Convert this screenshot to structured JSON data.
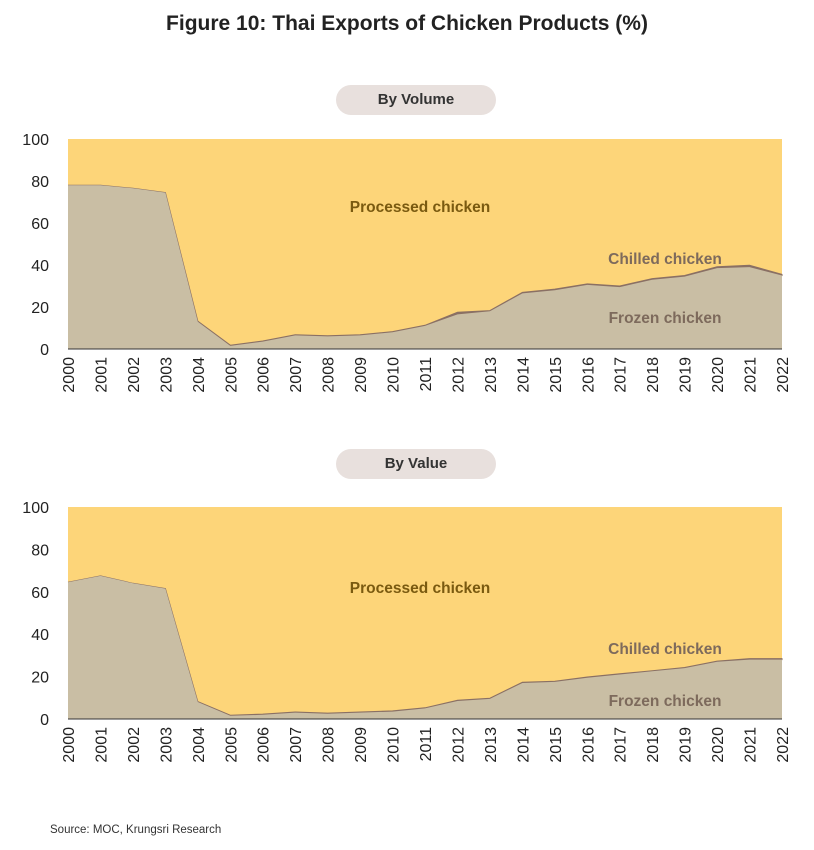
{
  "figure_title": "Figure 10: Thai Exports of Chicken Products (%)",
  "source": "Source: MOC, Krungsri Research",
  "colors": {
    "processed": "#fdd579",
    "chilled": "#8a7064",
    "frozen": "#c9bea4",
    "axis": "#333333",
    "label_processed": "#7a5a10",
    "label_other": "#7d6a5c"
  },
  "chart_data": [
    {
      "type": "area",
      "title": "By Volume",
      "stacked": true,
      "ylim": [
        0,
        100
      ],
      "yticks": [
        0,
        20,
        40,
        60,
        80,
        100
      ],
      "x": [
        "2000",
        "2001",
        "2002",
        "2003",
        "2004",
        "2005",
        "2006",
        "2007",
        "2008",
        "2009",
        "2010",
        "2011",
        "2012",
        "2013",
        "2014",
        "2015",
        "2016",
        "2017",
        "2018",
        "2019",
        "2020",
        "2021",
        "2022"
      ],
      "series": [
        {
          "name": "Frozen chicken",
          "values": [
            78,
            78,
            76.5,
            74.5,
            13,
            1.5,
            3.5,
            6.5,
            6,
            6.5,
            8,
            11,
            16.5,
            18,
            26.5,
            28,
            30.5,
            29.5,
            33,
            34.5,
            38.5,
            39,
            35
          ]
        },
        {
          "name": "Chilled chicken",
          "values": [
            0,
            0,
            0,
            0,
            0.3,
            0.3,
            0.3,
            0.3,
            0.3,
            0.3,
            0.3,
            0.3,
            1,
            0.3,
            0.5,
            0.5,
            0.5,
            0.5,
            0.5,
            0.5,
            0.7,
            0.9,
            0.5
          ]
        },
        {
          "name": "Processed chicken",
          "values": [
            22,
            22,
            23.5,
            25.5,
            86.7,
            98.2,
            96.2,
            93.2,
            93.7,
            93.2,
            91.7,
            88.7,
            82.5,
            81.7,
            73,
            71.5,
            69,
            70,
            66.5,
            65,
            60.8,
            60.1,
            64.5
          ]
        }
      ],
      "annotations": [
        "Processed chicken",
        "Chilled chicken",
        "Frozen chicken"
      ]
    },
    {
      "type": "area",
      "title": "By Value",
      "stacked": true,
      "ylim": [
        0,
        100
      ],
      "yticks": [
        0,
        20,
        40,
        60,
        80,
        100
      ],
      "x": [
        "2000",
        "2001",
        "2002",
        "2003",
        "2004",
        "2005",
        "2006",
        "2007",
        "2008",
        "2009",
        "2010",
        "2011",
        "2012",
        "2013",
        "2014",
        "2015",
        "2016",
        "2017",
        "2018",
        "2019",
        "2020",
        "2021",
        "2022"
      ],
      "series": [
        {
          "name": "Frozen chicken",
          "values": [
            64.5,
            67.5,
            64,
            61.5,
            8,
            1.5,
            2,
            3,
            2.5,
            3,
            3.5,
            5,
            8.5,
            9.5,
            17,
            17.5,
            19.5,
            21,
            22.5,
            24,
            27,
            28,
            28
          ]
        },
        {
          "name": "Chilled chicken",
          "values": [
            0,
            0,
            0,
            0,
            0.2,
            0.3,
            0.3,
            0.3,
            0.3,
            0.3,
            0.3,
            0.3,
            0.3,
            0.3,
            0.3,
            0.3,
            0.3,
            0.3,
            0.3,
            0.3,
            0.3,
            0.5,
            0.5
          ]
        },
        {
          "name": "Processed chicken",
          "values": [
            35.5,
            32.5,
            36,
            38.5,
            91.8,
            98.2,
            97.7,
            96.7,
            97.2,
            96.7,
            96.2,
            94.7,
            91.2,
            90.2,
            82.7,
            82.2,
            80.2,
            78.7,
            77.2,
            75.7,
            72.7,
            71.5,
            71.5
          ]
        }
      ],
      "annotations": [
        "Processed chicken",
        "Chilled chicken",
        "Frozen chicken"
      ]
    }
  ]
}
